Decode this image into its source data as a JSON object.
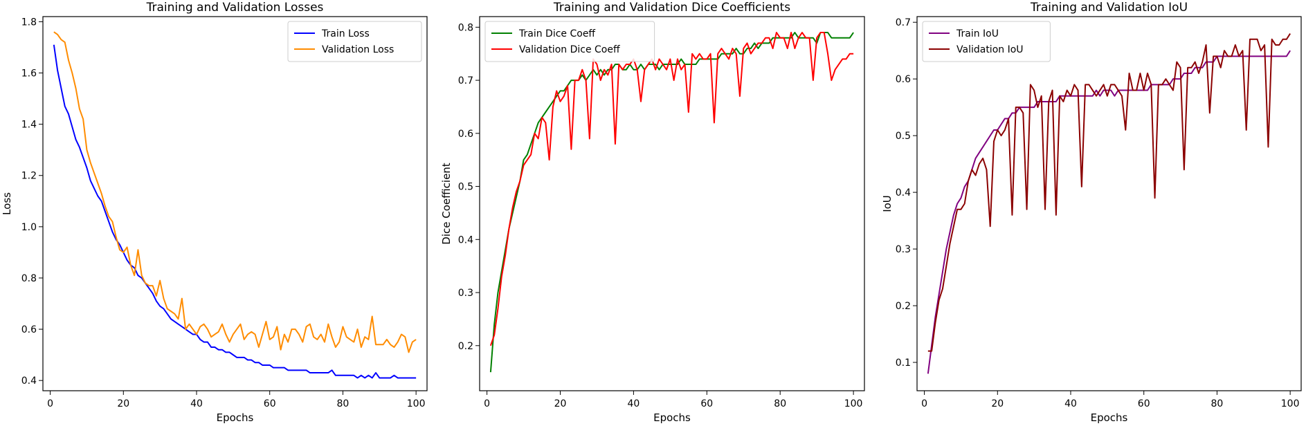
{
  "chart_data": [
    {
      "type": "line",
      "title": "Training and Validation Losses",
      "xlabel": "Epochs",
      "ylabel": "Loss",
      "xlim": [
        -2,
        103
      ],
      "ylim": [
        0.36,
        1.82
      ],
      "xticks": [
        0,
        20,
        40,
        60,
        80,
        100
      ],
      "yticks": [
        0.4,
        0.6,
        0.8,
        1.0,
        1.2,
        1.4,
        1.6,
        1.8
      ],
      "ytick_decimals": 1,
      "legend_position": "upper right",
      "grid": false,
      "series": [
        {
          "name": "Train Loss",
          "color": "#0000ff",
          "values": [
            1.71,
            1.61,
            1.54,
            1.47,
            1.44,
            1.39,
            1.34,
            1.31,
            1.27,
            1.23,
            1.18,
            1.15,
            1.12,
            1.1,
            1.06,
            1.02,
            0.98,
            0.95,
            0.93,
            0.9,
            0.87,
            0.85,
            0.84,
            0.81,
            0.8,
            0.78,
            0.76,
            0.74,
            0.71,
            0.69,
            0.68,
            0.66,
            0.64,
            0.63,
            0.62,
            0.61,
            0.6,
            0.59,
            0.58,
            0.58,
            0.56,
            0.55,
            0.55,
            0.53,
            0.53,
            0.52,
            0.52,
            0.51,
            0.51,
            0.5,
            0.49,
            0.49,
            0.49,
            0.48,
            0.48,
            0.47,
            0.47,
            0.46,
            0.46,
            0.46,
            0.45,
            0.45,
            0.45,
            0.45,
            0.44,
            0.44,
            0.44,
            0.44,
            0.44,
            0.44,
            0.43,
            0.43,
            0.43,
            0.43,
            0.43,
            0.43,
            0.44,
            0.42,
            0.42,
            0.42,
            0.42,
            0.42,
            0.42,
            0.41,
            0.42,
            0.41,
            0.42,
            0.41,
            0.43,
            0.41,
            0.41,
            0.41,
            0.41,
            0.42,
            0.41,
            0.41,
            0.41,
            0.41,
            0.41,
            0.41
          ]
        },
        {
          "name": "Validation Loss",
          "color": "#ff8c00",
          "values": [
            1.76,
            1.75,
            1.73,
            1.72,
            1.65,
            1.6,
            1.54,
            1.46,
            1.42,
            1.3,
            1.25,
            1.21,
            1.17,
            1.13,
            1.08,
            1.04,
            1.02,
            0.96,
            0.91,
            0.9,
            0.92,
            0.85,
            0.81,
            0.91,
            0.81,
            0.78,
            0.77,
            0.77,
            0.73,
            0.79,
            0.72,
            0.68,
            0.67,
            0.66,
            0.64,
            0.72,
            0.6,
            0.62,
            0.6,
            0.58,
            0.61,
            0.62,
            0.6,
            0.57,
            0.58,
            0.59,
            0.62,
            0.58,
            0.55,
            0.58,
            0.6,
            0.62,
            0.56,
            0.58,
            0.59,
            0.58,
            0.53,
            0.58,
            0.63,
            0.56,
            0.57,
            0.61,
            0.52,
            0.58,
            0.55,
            0.6,
            0.6,
            0.58,
            0.55,
            0.61,
            0.62,
            0.57,
            0.56,
            0.58,
            0.55,
            0.62,
            0.57,
            0.53,
            0.55,
            0.61,
            0.57,
            0.56,
            0.55,
            0.6,
            0.53,
            0.57,
            0.56,
            0.65,
            0.54,
            0.54,
            0.54,
            0.56,
            0.54,
            0.53,
            0.55,
            0.58,
            0.57,
            0.51,
            0.55,
            0.56
          ]
        }
      ]
    },
    {
      "type": "line",
      "title": "Training and Validation Dice Coefficients",
      "xlabel": "Epochs",
      "ylabel": "Dice Coefficient",
      "xlim": [
        -2,
        103
      ],
      "ylim": [
        0.115,
        0.82
      ],
      "xticks": [
        0,
        20,
        40,
        60,
        80,
        100
      ],
      "yticks": [
        0.2,
        0.3,
        0.4,
        0.5,
        0.6,
        0.7,
        0.8
      ],
      "ytick_decimals": 1,
      "legend_position": "upper left",
      "grid": false,
      "series": [
        {
          "name": "Train Dice Coeff",
          "color": "#008000",
          "values": [
            0.15,
            0.24,
            0.3,
            0.34,
            0.38,
            0.42,
            0.45,
            0.48,
            0.51,
            0.55,
            0.56,
            0.58,
            0.6,
            0.62,
            0.63,
            0.64,
            0.65,
            0.66,
            0.67,
            0.68,
            0.68,
            0.69,
            0.7,
            0.7,
            0.7,
            0.71,
            0.7,
            0.71,
            0.72,
            0.71,
            0.72,
            0.71,
            0.72,
            0.72,
            0.73,
            0.73,
            0.72,
            0.72,
            0.73,
            0.72,
            0.72,
            0.73,
            0.72,
            0.73,
            0.73,
            0.73,
            0.72,
            0.73,
            0.73,
            0.73,
            0.73,
            0.73,
            0.74,
            0.73,
            0.73,
            0.73,
            0.73,
            0.74,
            0.74,
            0.74,
            0.74,
            0.74,
            0.74,
            0.75,
            0.75,
            0.75,
            0.75,
            0.76,
            0.75,
            0.75,
            0.76,
            0.76,
            0.77,
            0.76,
            0.77,
            0.77,
            0.77,
            0.78,
            0.78,
            0.78,
            0.78,
            0.78,
            0.78,
            0.79,
            0.78,
            0.78,
            0.78,
            0.78,
            0.78,
            0.77,
            0.79,
            0.79,
            0.79,
            0.78,
            0.78,
            0.78,
            0.78,
            0.78,
            0.78,
            0.79
          ]
        },
        {
          "name": "Validation Dice Coeff",
          "color": "#ff0000",
          "values": [
            0.2,
            0.22,
            0.27,
            0.33,
            0.37,
            0.42,
            0.46,
            0.49,
            0.51,
            0.54,
            0.55,
            0.56,
            0.6,
            0.59,
            0.63,
            0.62,
            0.55,
            0.65,
            0.68,
            0.66,
            0.67,
            0.69,
            0.57,
            0.7,
            0.7,
            0.72,
            0.7,
            0.59,
            0.74,
            0.73,
            0.7,
            0.72,
            0.71,
            0.73,
            0.58,
            0.73,
            0.72,
            0.73,
            0.73,
            0.74,
            0.72,
            0.66,
            0.72,
            0.73,
            0.74,
            0.72,
            0.74,
            0.73,
            0.72,
            0.74,
            0.7,
            0.74,
            0.72,
            0.73,
            0.64,
            0.75,
            0.74,
            0.75,
            0.74,
            0.74,
            0.75,
            0.62,
            0.75,
            0.76,
            0.75,
            0.74,
            0.76,
            0.75,
            0.67,
            0.76,
            0.77,
            0.75,
            0.76,
            0.77,
            0.77,
            0.78,
            0.78,
            0.76,
            0.79,
            0.78,
            0.78,
            0.76,
            0.79,
            0.76,
            0.78,
            0.79,
            0.78,
            0.78,
            0.7,
            0.78,
            0.79,
            0.79,
            0.75,
            0.7,
            0.72,
            0.73,
            0.74,
            0.74,
            0.75,
            0.75
          ]
        }
      ]
    },
    {
      "type": "line",
      "title": "Training and Validation IoU",
      "xlabel": "Epochs",
      "ylabel": "IoU",
      "xlim": [
        -2,
        103
      ],
      "ylim": [
        0.05,
        0.71
      ],
      "xticks": [
        0,
        20,
        40,
        60,
        80,
        100
      ],
      "yticks": [
        0.1,
        0.2,
        0.3,
        0.4,
        0.5,
        0.6,
        0.7
      ],
      "ytick_decimals": 1,
      "legend_position": "upper left",
      "grid": false,
      "series": [
        {
          "name": "Train IoU",
          "color": "#800080",
          "values": [
            0.08,
            0.13,
            0.18,
            0.22,
            0.26,
            0.3,
            0.33,
            0.36,
            0.38,
            0.39,
            0.41,
            0.42,
            0.44,
            0.46,
            0.47,
            0.48,
            0.49,
            0.5,
            0.51,
            0.51,
            0.52,
            0.53,
            0.53,
            0.54,
            0.54,
            0.55,
            0.55,
            0.55,
            0.55,
            0.55,
            0.56,
            0.56,
            0.56,
            0.56,
            0.56,
            0.56,
            0.57,
            0.57,
            0.57,
            0.57,
            0.57,
            0.57,
            0.57,
            0.57,
            0.57,
            0.57,
            0.58,
            0.57,
            0.58,
            0.58,
            0.58,
            0.57,
            0.58,
            0.58,
            0.58,
            0.58,
            0.58,
            0.58,
            0.58,
            0.58,
            0.58,
            0.59,
            0.59,
            0.59,
            0.59,
            0.59,
            0.59,
            0.6,
            0.6,
            0.6,
            0.61,
            0.61,
            0.61,
            0.62,
            0.62,
            0.62,
            0.63,
            0.63,
            0.63,
            0.64,
            0.64,
            0.64,
            0.64,
            0.64,
            0.64,
            0.64,
            0.64,
            0.64,
            0.64,
            0.64,
            0.64,
            0.64,
            0.64,
            0.64,
            0.64,
            0.64,
            0.64,
            0.64,
            0.64,
            0.65
          ]
        },
        {
          "name": "Validation IoU",
          "color": "#8b0000",
          "values": [
            0.12,
            0.12,
            0.17,
            0.21,
            0.23,
            0.27,
            0.31,
            0.34,
            0.37,
            0.37,
            0.38,
            0.42,
            0.44,
            0.43,
            0.45,
            0.46,
            0.44,
            0.34,
            0.49,
            0.51,
            0.5,
            0.51,
            0.53,
            0.36,
            0.55,
            0.55,
            0.54,
            0.37,
            0.59,
            0.58,
            0.55,
            0.57,
            0.37,
            0.56,
            0.58,
            0.36,
            0.57,
            0.56,
            0.58,
            0.57,
            0.59,
            0.58,
            0.41,
            0.59,
            0.59,
            0.58,
            0.57,
            0.58,
            0.59,
            0.57,
            0.59,
            0.59,
            0.58,
            0.57,
            0.51,
            0.61,
            0.58,
            0.58,
            0.61,
            0.58,
            0.61,
            0.59,
            0.39,
            0.59,
            0.59,
            0.6,
            0.59,
            0.58,
            0.63,
            0.62,
            0.44,
            0.62,
            0.62,
            0.63,
            0.61,
            0.63,
            0.66,
            0.54,
            0.64,
            0.64,
            0.62,
            0.65,
            0.64,
            0.64,
            0.66,
            0.64,
            0.65,
            0.51,
            0.67,
            0.67,
            0.67,
            0.65,
            0.66,
            0.48,
            0.67,
            0.66,
            0.66,
            0.67,
            0.67,
            0.68
          ]
        }
      ]
    }
  ]
}
